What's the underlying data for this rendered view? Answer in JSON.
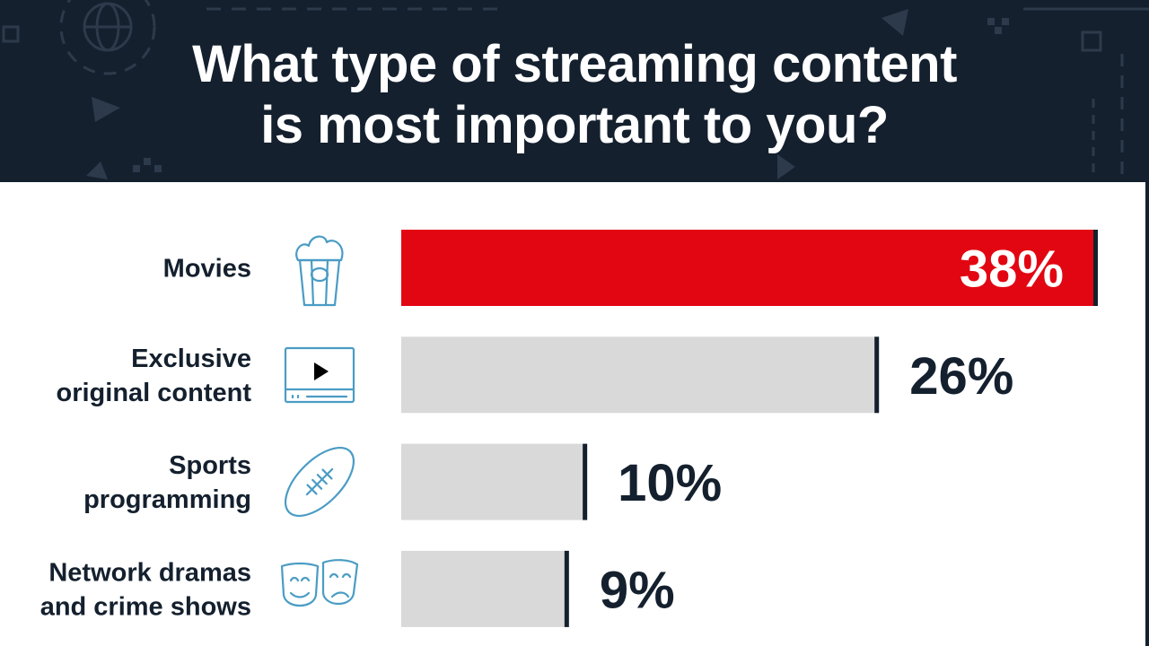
{
  "title_lines": [
    "What type of streaming content",
    "is most important to you?"
  ],
  "colors": {
    "header_bg": "#14202e",
    "highlight_bar": "#e20612",
    "bar": "#d9d9d9",
    "bar_end_line": "#14202e",
    "label_text": "#14202e",
    "icon": "#4a9cc4"
  },
  "chart_data": {
    "type": "bar",
    "orientation": "horizontal",
    "title": "What type of streaming content is most important to you?",
    "categories": [
      [
        "Movies"
      ],
      [
        "Exclusive",
        "original content"
      ],
      [
        "Sports",
        "programming"
      ],
      [
        "Network dramas",
        "and crime shows"
      ]
    ],
    "values": [
      38,
      26,
      10,
      9
    ],
    "value_labels": [
      "38%",
      "26%",
      "10%",
      "9%"
    ],
    "icons": [
      "popcorn-icon",
      "video-player-icon",
      "football-icon",
      "theater-masks-icon"
    ],
    "highlight_index": 0,
    "xlim": [
      0,
      38
    ],
    "grid": false,
    "legend": "none"
  }
}
